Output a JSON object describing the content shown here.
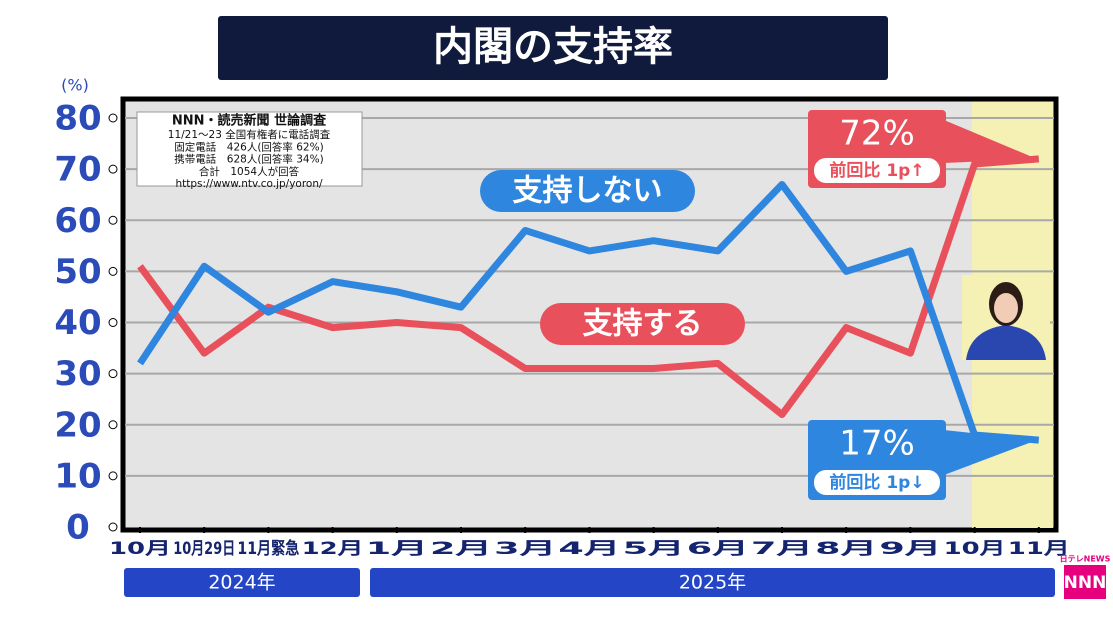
{
  "chart_data": {
    "type": "line",
    "title": "内閣の支持率",
    "y_unit": "(%)",
    "categories": [
      "10月",
      "10月29日",
      "11月緊急",
      "12月",
      "1月",
      "2月",
      "3月",
      "4月",
      "5月",
      "6月",
      "7月",
      "8月",
      "9月",
      "10月",
      "11月"
    ],
    "year_labels": [
      "2024年",
      "2025年"
    ],
    "series": [
      {
        "name": "支持する",
        "color": "#e8505b",
        "values": [
          51,
          34,
          43,
          39,
          40,
          39,
          31,
          31,
          31,
          32,
          22,
          39,
          34,
          71,
          72
        ],
        "value_labels": [
          null,
          null,
          null,
          null,
          null,
          null,
          null,
          null,
          null,
          null,
          null,
          null,
          null,
          null,
          "72%"
        ]
      },
      {
        "name": "支持しない",
        "color": "#2f86de",
        "values": [
          32,
          51,
          42,
          48,
          46,
          43,
          58,
          54,
          56,
          54,
          67,
          50,
          54,
          18,
          17
        ],
        "value_labels": [
          null,
          null,
          null,
          null,
          null,
          null,
          null,
          null,
          null,
          null,
          null,
          null,
          null,
          null,
          "17%"
        ]
      }
    ],
    "change_labels": [
      "前回比 1p↑",
      "前回比 1p↓"
    ],
    "source": [
      "NNN・読売新聞 世論調査",
      "11/21～23 全国有権者に電話調査",
      "固定電話　426人(回答率 62%)",
      "携帯電話　628人(回答率 34%)",
      "合計　1054人が回答",
      "https://www.ntv.co.jp/yoron/"
    ],
    "logo": [
      "日テレNEWS",
      "NNN"
    ],
    "ylim": [
      0,
      80
    ],
    "yticks": [
      0,
      10,
      20,
      30,
      40,
      50,
      60,
      70,
      80
    ],
    "grid": true
  }
}
